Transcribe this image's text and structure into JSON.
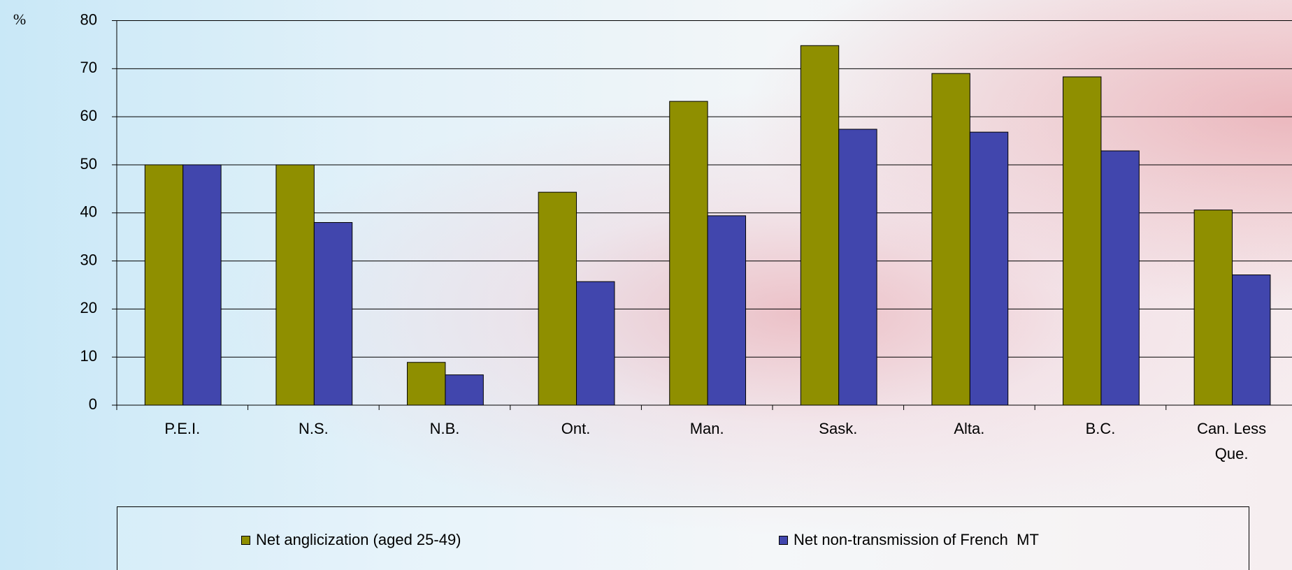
{
  "chart_data": {
    "type": "bar",
    "y_label": "%",
    "categories": [
      "P.E.I.",
      "N.S.",
      "N.B.",
      "Ont.",
      "Man.",
      "Sask.",
      "Alta.",
      "B.C.",
      "Can. Less Que."
    ],
    "series": [
      {
        "name": "Net anglicization (aged 25-49)",
        "color": "#8f8f00",
        "values": [
          50,
          50,
          8.9,
          44.3,
          63.2,
          74.8,
          69.0,
          68.3,
          40.6
        ]
      },
      {
        "name": "Net non-transmission of French  MT",
        "color": "#4146ad",
        "values": [
          50,
          38.0,
          6.3,
          25.7,
          39.4,
          57.4,
          56.8,
          52.9,
          27.1
        ]
      }
    ],
    "ylim": [
      0,
      80
    ],
    "yticks": [
      0,
      10,
      20,
      30,
      40,
      50,
      60,
      70,
      80
    ],
    "grid": true,
    "legend": "bottom"
  }
}
